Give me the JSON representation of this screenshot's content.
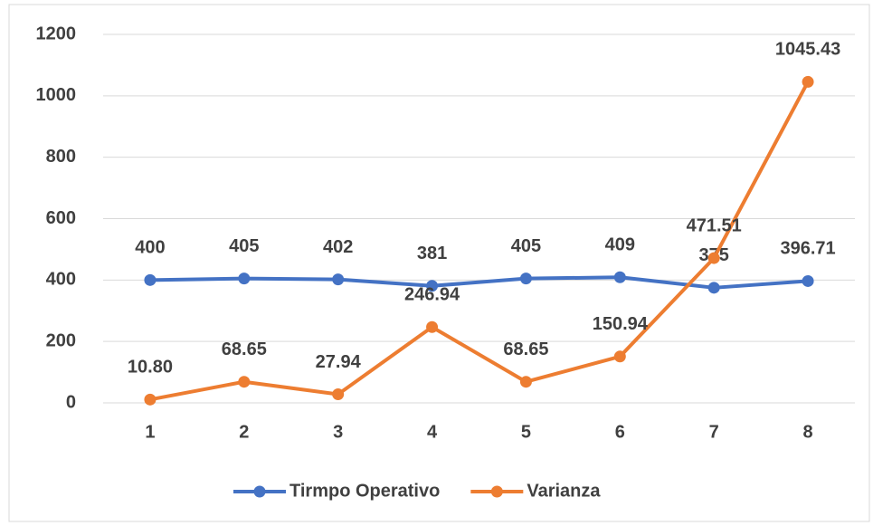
{
  "chart_data": {
    "type": "line",
    "categories": [
      "1",
      "2",
      "3",
      "4",
      "5",
      "6",
      "7",
      "8"
    ],
    "series": [
      {
        "name": "Tirmpo Operativo",
        "color": "#4472c4",
        "values": [
          400,
          405,
          402,
          381,
          405,
          409,
          375,
          396.71
        ]
      },
      {
        "name": "Varianza",
        "color": "#ed7d31",
        "values": [
          10.8,
          68.65,
          27.94,
          246.94,
          68.65,
          150.94,
          471.51,
          1045.43
        ],
        "value_labels": [
          "10.80",
          "68.65",
          "27.94",
          "246.94",
          "68.65",
          "150.94",
          "471.51",
          "1045.43"
        ]
      }
    ],
    "ylim": [
      0,
      1200
    ],
    "yticks": [
      0,
      200,
      400,
      600,
      800,
      1000,
      1200
    ],
    "grid": true,
    "legend": "bottom"
  }
}
